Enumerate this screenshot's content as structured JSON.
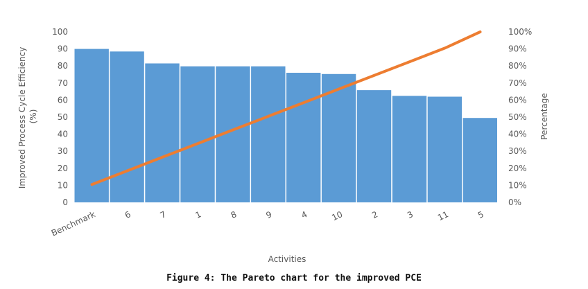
{
  "figure": {
    "caption": "Figure 4: The Pareto chart for the improved PCE"
  },
  "chart_data": {
    "type": "bar",
    "categories": [
      "Benchmark",
      "6",
      "7",
      "1",
      "8",
      "9",
      "4",
      "10",
      "2",
      "3",
      "11",
      "5"
    ],
    "series": [
      {
        "type": "bar",
        "values": [
          90,
          88.5,
          81.5,
          79.8,
          79.8,
          79.8,
          76,
          75.3,
          65.8,
          62.5,
          62,
          49.5
        ]
      },
      {
        "type": "line",
        "axis": "right",
        "values": [
          10.5,
          18.5,
          26.5,
          34.5,
          42.5,
          50.5,
          58.5,
          66.5,
          74.5,
          82.5,
          90.5,
          100
        ]
      }
    ],
    "xlabel": "Activities",
    "ylabel": "Improved Process Cycle Efficiency (%)",
    "y2label": "Percentage",
    "ylim": [
      0,
      100
    ],
    "y2lim": [
      0,
      100
    ],
    "yticks": [
      "0",
      "10",
      "20",
      "30",
      "40",
      "50",
      "60",
      "70",
      "80",
      "90",
      "100"
    ],
    "y2ticks": [
      "0%",
      "10%",
      "20%",
      "30%",
      "40%",
      "50%",
      "60%",
      "70%",
      "80%",
      "90%",
      "100%"
    ],
    "bar_color": "#5B9BD5",
    "line_color": "#ED7D31",
    "grid": false,
    "legend": "none"
  }
}
